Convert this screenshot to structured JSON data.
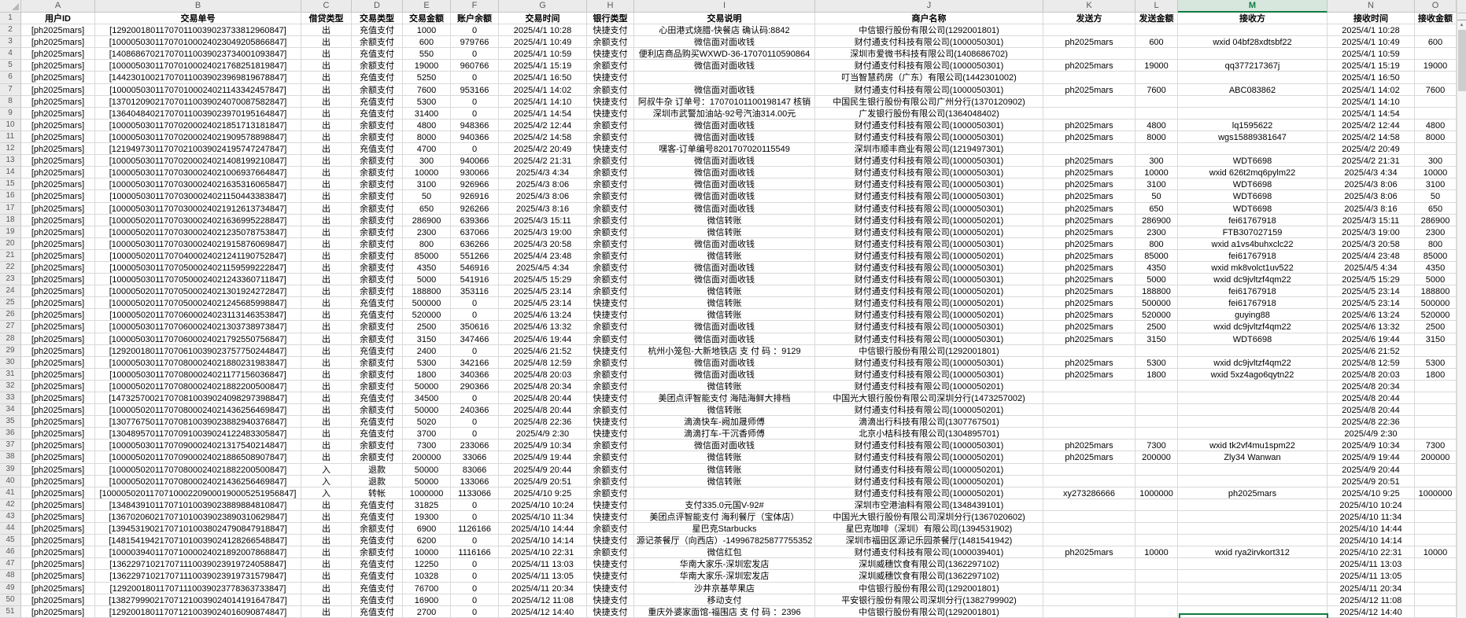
{
  "app": {
    "kind": "spreadsheet-grid"
  },
  "colors": {
    "accent_green": "#107C41",
    "header_bg": "#ebebeb",
    "gridline": "#d9d9d9",
    "selected_col_bg": "#d7e7dd"
  },
  "icons": {
    "scroll_up_icon": "▲",
    "select_all_corner_icon": "corner-triangle"
  },
  "columns": {
    "letters": [
      "A",
      "B",
      "C",
      "D",
      "E",
      "F",
      "G",
      "H",
      "I",
      "J",
      "K",
      "L",
      "M",
      "N",
      "O"
    ],
    "selected_letter": "M"
  },
  "header_row": [
    "用户ID",
    "交易单号",
    "借贷类型",
    "交易类型",
    "交易金额",
    "账户余额",
    "交易时间",
    "银行类型",
    "交易说明",
    "商户名称",
    "发送方",
    "发送金额",
    "接收方",
    "接收时间",
    "接收金额"
  ],
  "rows": [
    [
      2,
      "[ph2025mars]",
      "[129200180117070110039023733812960847]",
      "出",
      "充值支付",
      "1000",
      "0",
      "2025/4/1 10:28",
      "快捷支付",
      "心田港式烧腊-快餐店 确认码:8842",
      "中信银行股份有限公司(1292001801)",
      "",
      "",
      "",
      "2025/4/1 10:28",
      ""
    ],
    [
      3,
      "[ph2025mars]",
      "[100005030117070100024023049205866847]",
      "出",
      "余额支付",
      "600",
      "979766",
      "2025/4/1 10:49",
      "余额支付",
      "微信面对面收钱",
      "财付通支付科技有限公司(1000050301)",
      "ph2025mars",
      "600",
      "wxid 04bf28xdtsbf22",
      "2025/4/1 10:49",
      "600"
    ],
    [
      4,
      "[ph2025mars]",
      "[140868670217070110039023734001093847]",
      "出",
      "充值支付",
      "550",
      "0",
      "2025/4/1 10:59",
      "快捷支付",
      "便利店商品购买WXWD-36-17070110590864",
      "深圳市爱微书科技有限公司(1408686702)",
      "",
      "",
      "",
      "2025/4/1 10:59",
      ""
    ],
    [
      5,
      "[ph2025mars]",
      "[100005030117070100024021768251819847]",
      "出",
      "余额支付",
      "19000",
      "960766",
      "2025/4/1 15:19",
      "余额支付",
      "微信面对面收钱",
      "财付通支付科技有限公司(1000050301)",
      "ph2025mars",
      "19000",
      "qq377217367j",
      "2025/4/1 15:19",
      "19000"
    ],
    [
      6,
      "[ph2025mars]",
      "[144230100217070110039023969819678847]",
      "出",
      "充值支付",
      "5250",
      "0",
      "2025/4/1 16:50",
      "快捷支付",
      "",
      "叮当智慧药房（广东）有限公司(1442301002)",
      "",
      "",
      "",
      "2025/4/1 16:50",
      ""
    ],
    [
      7,
      "[ph2025mars]",
      "[100005030117070100024021143342457847]",
      "出",
      "余额支付",
      "7600",
      "953166",
      "2025/4/1 14:02",
      "余额支付",
      "微信面对面收钱",
      "财付通支付科技有限公司(1000050301)",
      "ph2025mars",
      "7600",
      "ABC083862",
      "2025/4/1 14:02",
      "7600"
    ],
    [
      8,
      "[ph2025mars]",
      "[137012090217070110039024070087582847]",
      "出",
      "充值支付",
      "5300",
      "0",
      "2025/4/1 14:10",
      "快捷支付",
      "阿叔牛杂 订单号：17070101100198147 核销",
      "中国民生银行股份有限公司广州分行(1370120902)",
      "",
      "",
      "",
      "2025/4/1 14:10",
      ""
    ],
    [
      9,
      "[ph2025mars]",
      "[136404840217070110039023970195164847]",
      "出",
      "充值支付",
      "31400",
      "0",
      "2025/4/1 14:54",
      "快捷支付",
      "深圳市武警加油站-92号汽油314.00元",
      "广发银行股份有限公司(1364048402)",
      "",
      "",
      "",
      "2025/4/1 14:54",
      ""
    ],
    [
      10,
      "[ph2025mars]",
      "[100005030117070200024021851713181847]",
      "出",
      "余额支付",
      "4800",
      "948366",
      "2025/4/2 12:44",
      "余额支付",
      "微信面对面收钱",
      "财付通支付科技有限公司(1000050301)",
      "ph2025mars",
      "4800",
      "lq1595622",
      "2025/4/2 12:44",
      "4800"
    ],
    [
      11,
      "[ph2025mars]",
      "[100005030117070200024021909578898847]",
      "出",
      "余额支付",
      "8000",
      "940366",
      "2025/4/2 14:58",
      "余额支付",
      "微信面对面收钱",
      "财付通支付科技有限公司(1000050301)",
      "ph2025mars",
      "8000",
      "wgs15889381647",
      "2025/4/2 14:58",
      "8000"
    ],
    [
      12,
      "[ph2025mars]",
      "[121949730117070210039024195747247847]",
      "出",
      "充值支付",
      "4700",
      "0",
      "2025/4/2 20:49",
      "快捷支付",
      "嘿客-订单编号8201707020115549",
      "深圳市顺丰商业有限公司(1219497301)",
      "",
      "",
      "",
      "2025/4/2 20:49",
      ""
    ],
    [
      13,
      "[ph2025mars]",
      "[100005030117070200024021408199210847]",
      "出",
      "余额支付",
      "300",
      "940066",
      "2025/4/2 21:31",
      "余额支付",
      "微信面对面收钱",
      "财付通支付科技有限公司(1000050301)",
      "ph2025mars",
      "300",
      "WDT6698",
      "2025/4/2 21:31",
      "300"
    ],
    [
      14,
      "[ph2025mars]",
      "[100005030117070300024021006937664847]",
      "出",
      "余额支付",
      "10000",
      "930066",
      "2025/4/3 4:34",
      "余额支付",
      "微信面对面收钱",
      "财付通支付科技有限公司(1000050301)",
      "ph2025mars",
      "10000",
      "wxid 626t2mq6pylm22",
      "2025/4/3 4:34",
      "10000"
    ],
    [
      15,
      "[ph2025mars]",
      "[100005030117070300024021635316065847]",
      "出",
      "余额支付",
      "3100",
      "926966",
      "2025/4/3 8:06",
      "余额支付",
      "微信面对面收钱",
      "财付通支付科技有限公司(1000050301)",
      "ph2025mars",
      "3100",
      "WDT6698",
      "2025/4/3 8:06",
      "3100"
    ],
    [
      16,
      "[ph2025mars]",
      "[100005030117070300024021150443383847]",
      "出",
      "余额支付",
      "50",
      "926916",
      "2025/4/3 8:06",
      "余额支付",
      "微信面对面收钱",
      "财付通支付科技有限公司(1000050301)",
      "ph2025mars",
      "50",
      "WDT6698",
      "2025/4/3 8:06",
      "50"
    ],
    [
      17,
      "[ph2025mars]",
      "[100005030117070300024021912613734847]",
      "出",
      "余额支付",
      "650",
      "926266",
      "2025/4/3 8:16",
      "余额支付",
      "微信面对面收钱",
      "财付通支付科技有限公司(1000050301)",
      "ph2025mars",
      "650",
      "WDT6698",
      "2025/4/3 8:16",
      "650"
    ],
    [
      18,
      "[ph2025mars]",
      "[100005020117070300024021636995228847]",
      "出",
      "余额支付",
      "286900",
      "639366",
      "2025/4/3 15:11",
      "余额支付",
      "微信转账",
      "财付通支付科技有限公司(1000050201)",
      "ph2025mars",
      "286900",
      "fei61767918",
      "2025/4/3 15:11",
      "286900"
    ],
    [
      19,
      "[ph2025mars]",
      "[100005020117070300024021235078753847]",
      "出",
      "余额支付",
      "2300",
      "637066",
      "2025/4/3 19:00",
      "余额支付",
      "微信转账",
      "财付通支付科技有限公司(1000050201)",
      "ph2025mars",
      "2300",
      "FTB307027159",
      "2025/4/3 19:00",
      "2300"
    ],
    [
      20,
      "[ph2025mars]",
      "[100005030117070300024021915876069847]",
      "出",
      "余额支付",
      "800",
      "636266",
      "2025/4/3 20:58",
      "余额支付",
      "微信面对面收钱",
      "财付通支付科技有限公司(1000050301)",
      "ph2025mars",
      "800",
      "wxid a1vs4buhxclc22",
      "2025/4/3 20:58",
      "800"
    ],
    [
      21,
      "[ph2025mars]",
      "[100005020117070400024021241190752847]",
      "出",
      "余额支付",
      "85000",
      "551266",
      "2025/4/4 23:48",
      "余额支付",
      "微信转账",
      "财付通支付科技有限公司(1000050201)",
      "ph2025mars",
      "85000",
      "fei61767918",
      "2025/4/4 23:48",
      "85000"
    ],
    [
      22,
      "[ph2025mars]",
      "[100005030117070500024021159599222847]",
      "出",
      "余额支付",
      "4350",
      "546916",
      "2025/4/5 4:34",
      "余额支付",
      "微信面对面收钱",
      "财付通支付科技有限公司(1000050301)",
      "ph2025mars",
      "4350",
      "wxid mk8volct1uv522",
      "2025/4/5 4:34",
      "4350"
    ],
    [
      23,
      "[ph2025mars]",
      "[100005030117070500024021243360711847]",
      "出",
      "余额支付",
      "5000",
      "541916",
      "2025/4/5 15:29",
      "余额支付",
      "微信面对面收钱",
      "财付通支付科技有限公司(1000050301)",
      "ph2025mars",
      "5000",
      "wxid dc9jvltzf4qm22",
      "2025/4/5 15:29",
      "5000"
    ],
    [
      24,
      "[ph2025mars]",
      "[100005020117070500024021301924272847]",
      "出",
      "余额支付",
      "188800",
      "353116",
      "2025/4/5 23:14",
      "余额支付",
      "微信转账",
      "财付通支付科技有限公司(1000050201)",
      "ph2025mars",
      "188800",
      "fei61767918",
      "2025/4/5 23:14",
      "188800"
    ],
    [
      25,
      "[ph2025mars]",
      "[100005020117070500024021245685998847]",
      "出",
      "充值支付",
      "500000",
      "0",
      "2025/4/5 23:14",
      "快捷支付",
      "微信转账",
      "财付通支付科技有限公司(1000050201)",
      "ph2025mars",
      "500000",
      "fei61767918",
      "2025/4/5 23:14",
      "500000"
    ],
    [
      26,
      "[ph2025mars]",
      "[100005020117070600024023113146353847]",
      "出",
      "充值支付",
      "520000",
      "0",
      "2025/4/6 13:24",
      "快捷支付",
      "微信转账",
      "财付通支付科技有限公司(1000050201)",
      "ph2025mars",
      "520000",
      "guying88",
      "2025/4/6 13:24",
      "520000"
    ],
    [
      27,
      "[ph2025mars]",
      "[100005030117070600024021303738973847]",
      "出",
      "余额支付",
      "2500",
      "350616",
      "2025/4/6 13:32",
      "余额支付",
      "微信面对面收钱",
      "财付通支付科技有限公司(1000050301)",
      "ph2025mars",
      "2500",
      "wxid dc9jvltzf4qm22",
      "2025/4/6 13:32",
      "2500"
    ],
    [
      28,
      "[ph2025mars]",
      "[100005030117070600024021792550756847]",
      "出",
      "余额支付",
      "3150",
      "347466",
      "2025/4/6 19:44",
      "余额支付",
      "微信面对面收钱",
      "财付通支付科技有限公司(1000050301)",
      "ph2025mars",
      "3150",
      "WDT6698",
      "2025/4/6 19:44",
      "3150"
    ],
    [
      29,
      "[ph2025mars]",
      "[129200180117070610039023757750244847]",
      "出",
      "充值支付",
      "2400",
      "0",
      "2025/4/6 21:52",
      "快捷支付",
      "杭州小笼包-大新地铁店 支 付 码 ：9129",
      "中信银行股份有限公司(1292001801)",
      "",
      "",
      "",
      "2025/4/6 21:52",
      ""
    ],
    [
      30,
      "[ph2025mars]",
      "[100005030117070800024021880231983847]",
      "出",
      "余额支付",
      "5300",
      "342166",
      "2025/4/8 12:59",
      "余额支付",
      "微信面对面收钱",
      "财付通支付科技有限公司(1000050301)",
      "ph2025mars",
      "5300",
      "wxid dc9jvltzf4qm22",
      "2025/4/8 12:59",
      "5300"
    ],
    [
      31,
      "[ph2025mars]",
      "[100005030117070800024021177156036847]",
      "出",
      "余额支付",
      "1800",
      "340366",
      "2025/4/8 20:03",
      "余额支付",
      "微信面对面收钱",
      "财付通支付科技有限公司(1000050301)",
      "ph2025mars",
      "1800",
      "wxid 5xz4ago6qytn22",
      "2025/4/8 20:03",
      "1800"
    ],
    [
      32,
      "[ph2025mars]",
      "[100005020117070800024021882200500847]",
      "出",
      "余额支付",
      "50000",
      "290366",
      "2025/4/8 20:34",
      "余额支付",
      "微信转账",
      "财付通支付科技有限公司(1000050201)",
      "",
      "",
      "",
      "2025/4/8 20:34",
      ""
    ],
    [
      33,
      "[ph2025mars]",
      "[147325700217070810039024098297398847]",
      "出",
      "充值支付",
      "34500",
      "0",
      "2025/4/8 20:44",
      "快捷支付",
      "美团点评智能支付 海陆海鲜大排档",
      "中国光大银行股份有限公司深圳分行(1473257002)",
      "",
      "",
      "",
      "2025/4/8 20:44",
      ""
    ],
    [
      34,
      "[ph2025mars]",
      "[100005020117070800024021436256469847]",
      "出",
      "余额支付",
      "50000",
      "240366",
      "2025/4/8 20:44",
      "余额支付",
      "微信转账",
      "财付通支付科技有限公司(1000050201)",
      "",
      "",
      "",
      "2025/4/8 20:44",
      ""
    ],
    [
      35,
      "[ph2025mars]",
      "[130776750117070810039023882940376847]",
      "出",
      "充值支付",
      "5020",
      "0",
      "2025/4/8 22:36",
      "快捷支付",
      "滴滴快车-阙加晟师傅",
      "滴滴出行科技有限公司(1307767501)",
      "",
      "",
      "",
      "2025/4/8 22:36",
      ""
    ],
    [
      36,
      "[ph2025mars]",
      "[130489570117070910039024122483305847]",
      "出",
      "充值支付",
      "3700",
      "0",
      "2025/4/9 2:30",
      "快捷支付",
      "滴滴打车-干沉香师傅",
      "北京小桔科技有限公司(1304895701)",
      "",
      "",
      "",
      "2025/4/9 2:30",
      ""
    ],
    [
      37,
      "[ph2025mars]",
      "[100005030117070900024021317540214847]",
      "出",
      "余额支付",
      "7300",
      "233066",
      "2025/4/9 10:34",
      "余额支付",
      "微信面对面收钱",
      "财付通支付科技有限公司(1000050301)",
      "ph2025mars",
      "7300",
      "wxid tk2vf4mu1spm22",
      "2025/4/9 10:34",
      "7300"
    ],
    [
      38,
      "[ph2025mars]",
      "[100005020117070900024021886508907847]",
      "出",
      "余额支付",
      "200000",
      "33066",
      "2025/4/9 19:44",
      "余额支付",
      "微信转账",
      "财付通支付科技有限公司(1000050201)",
      "ph2025mars",
      "200000",
      "Zly34 Wanwan",
      "2025/4/9 19:44",
      "200000"
    ],
    [
      39,
      "[ph2025mars]",
      "[100005020117070800024021882200500847]",
      "入",
      "退款",
      "50000",
      "83066",
      "2025/4/9 20:44",
      "余额支付",
      "微信转账",
      "财付通支付科技有限公司(1000050201)",
      "",
      "",
      "",
      "2025/4/9 20:44",
      ""
    ],
    [
      40,
      "[ph2025mars]",
      "[100005020117070800024021436256469847]",
      "入",
      "退款",
      "50000",
      "133066",
      "2025/4/9 20:51",
      "余额支付",
      "微信转账",
      "财付通支付科技有限公司(1000050201)",
      "",
      "",
      "",
      "2025/4/9 20:51",
      ""
    ],
    [
      41,
      "[ph2025mars]",
      "[1000050201170710002209000190005251956847]",
      "入",
      "转帐",
      "1000000",
      "1133066",
      "2025/4/10 9:25",
      "余额支付",
      "",
      "财付通支付科技有限公司(1000050201)",
      "xy273286666",
      "1000000",
      "ph2025mars",
      "2025/4/10 9:25",
      "1000000"
    ],
    [
      42,
      "[ph2025mars]",
      "[134843910117071010039023889884810847]",
      "出",
      "充值支付",
      "31825",
      "0",
      "2025/4/10 10:24",
      "快捷支付",
      "支付335.0元国V-92#",
      "深圳市空港油料有限公司(1348439101)",
      "",
      "",
      "",
      "2025/4/10 10:24",
      ""
    ],
    [
      43,
      "[ph2025mars]",
      "[136702060217071010039023890310629847]",
      "出",
      "充值支付",
      "19300",
      "0",
      "2025/4/10 11:34",
      "快捷支付",
      "美团点评智能支付 海利餐厅（宝体店）",
      "中国光大银行股份有限公司深圳分行(1367020602)",
      "",
      "",
      "",
      "2025/4/10 11:34",
      ""
    ],
    [
      44,
      "[ph2025mars]",
      "[139453190217071010038024790847918847]",
      "出",
      "余额支付",
      "6900",
      "1126166",
      "2025/4/10 14:44",
      "余额支付",
      "星巴克Starbucks",
      "星巴克咖啡（深圳）有限公司(1394531902)",
      "",
      "",
      "",
      "2025/4/10 14:44",
      ""
    ],
    [
      45,
      "[ph2025mars]",
      "[148154194217071010039024128266548847]",
      "出",
      "充值支付",
      "6200",
      "0",
      "2025/4/10 14:14",
      "快捷支付",
      "源记茶餐厅（向西店）-149967825877755352",
      "深圳市福田区源记乐园茶餐厅(1481541942)",
      "",
      "",
      "",
      "2025/4/10 14:14",
      ""
    ],
    [
      46,
      "[ph2025mars]",
      "[100003940117071000024021892007868847]",
      "出",
      "余额支付",
      "10000",
      "1116166",
      "2025/4/10 22:31",
      "余额支付",
      "微信红包",
      "财付通支付科技有限公司(1000039401)",
      "ph2025mars",
      "10000",
      "wxid rya2irvkort312",
      "2025/4/10 22:31",
      "10000"
    ],
    [
      47,
      "[ph2025mars]",
      "[136229710217071110039023919724058847]",
      "出",
      "充值支付",
      "12250",
      "0",
      "2025/4/11 13:03",
      "快捷支付",
      "华南大家乐-深圳宏发店",
      "深圳威穗饮食有限公司(1362297102)",
      "",
      "",
      "",
      "2025/4/11 13:03",
      ""
    ],
    [
      48,
      "[ph2025mars]",
      "[136229710217071110039023919731579847]",
      "出",
      "充值支付",
      "10328",
      "0",
      "2025/4/11 13:05",
      "快捷支付",
      "华南大家乐-深圳宏发店",
      "深圳威穗饮食有限公司(1362297102)",
      "",
      "",
      "",
      "2025/4/11 13:05",
      ""
    ],
    [
      49,
      "[ph2025mars]",
      "[129200180117071110039023778363733847]",
      "出",
      "充值支付",
      "76700",
      "0",
      "2025/4/11 20:34",
      "快捷支付",
      "沙井京基苹果店",
      "中信银行股份有限公司(1292001801)",
      "",
      "",
      "",
      "2025/4/11 20:34",
      ""
    ],
    [
      50,
      "[ph2025mars]",
      "[138279990217071210039024014191647847]",
      "出",
      "充值支付",
      "16900",
      "0",
      "2025/4/12 11:08",
      "快捷支付",
      "移动支付",
      "平安银行股份有限公司深圳分行(1382799902)",
      "",
      "",
      "",
      "2025/4/12 11:08",
      ""
    ],
    [
      51,
      "[ph2025mars]",
      "[129200180117071210039024016090874847]",
      "出",
      "充值支付",
      "2700",
      "0",
      "2025/4/12 14:40",
      "快捷支付",
      "重庆外婆家面馆-福围店 支 付 码 ：2396",
      "中信银行股份有限公司(1292001801)",
      "",
      "",
      "",
      "2025/4/12 14:40",
      ""
    ]
  ]
}
